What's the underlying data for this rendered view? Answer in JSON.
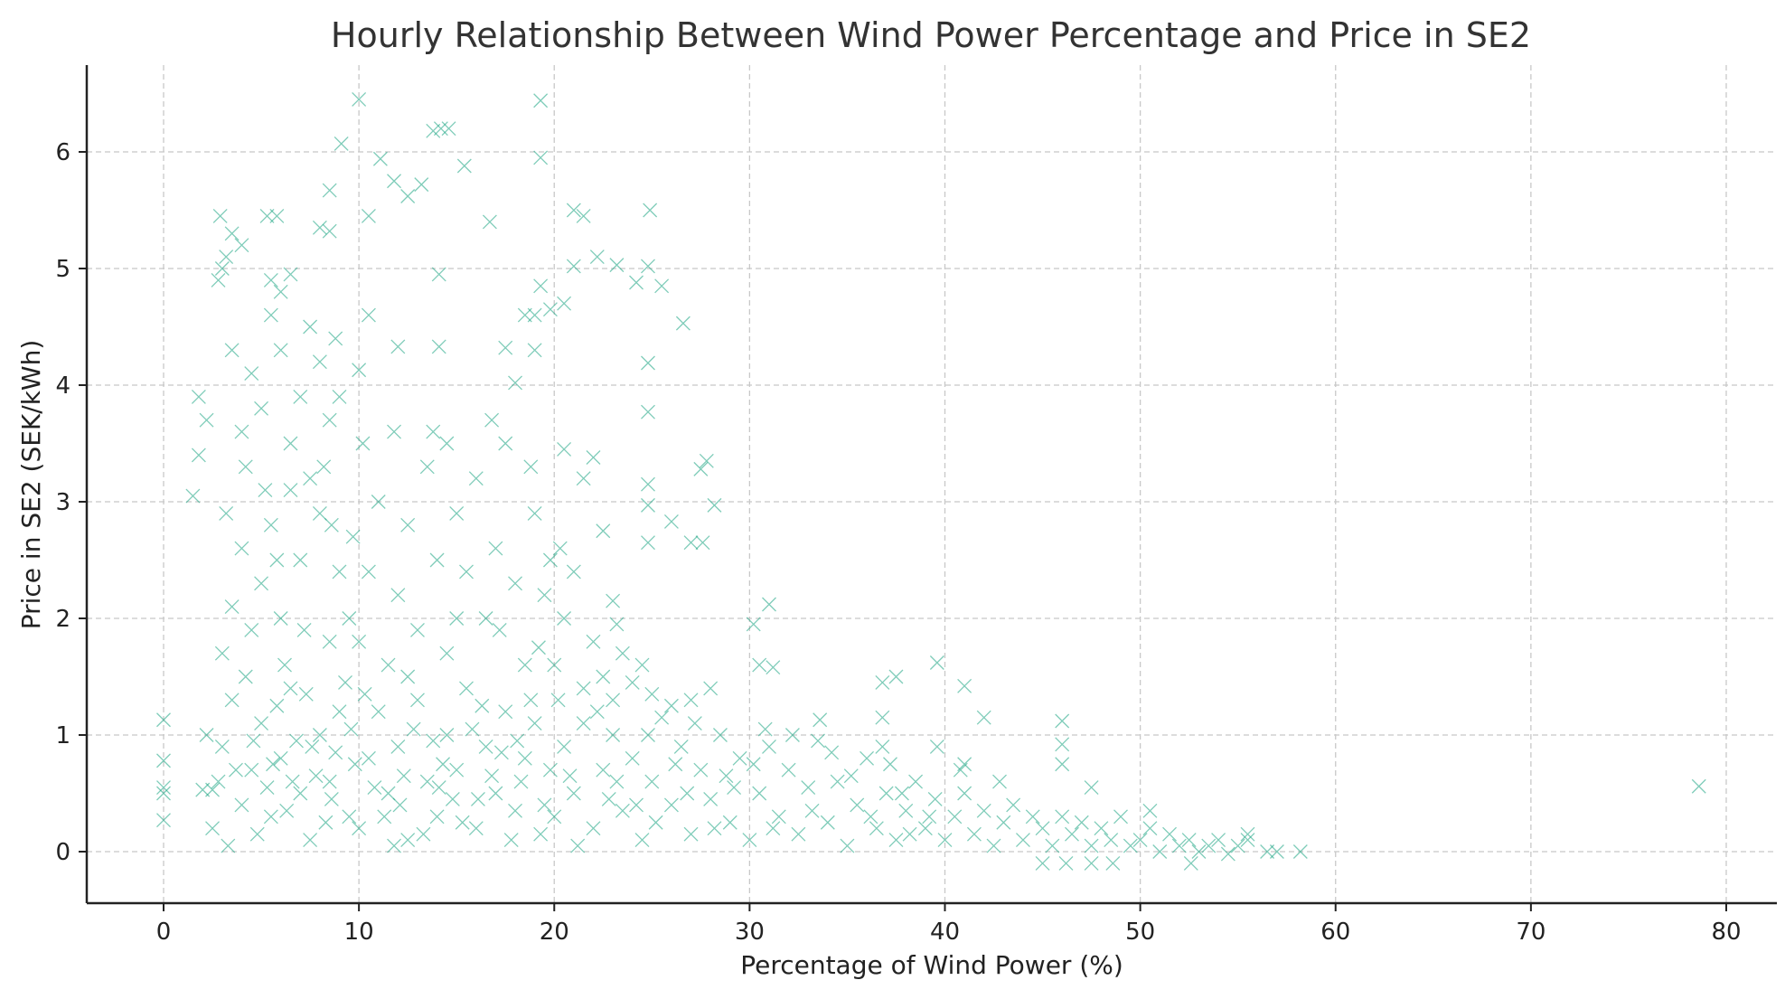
{
  "chart_data": {
    "type": "scatter",
    "title": "Hourly Relationship Between Wind Power Percentage and Price in SE2",
    "xlabel": "Percentage of Wind Power (%)",
    "ylabel": "Price in SE2 (SEK/kWh)",
    "xlim": [
      -4,
      83
    ],
    "ylim": [
      -0.45,
      6.8
    ],
    "xticks": [
      0,
      10,
      20,
      30,
      40,
      50,
      60,
      70,
      80
    ],
    "yticks": [
      0,
      1,
      2,
      3,
      4,
      5,
      6
    ],
    "grid": true,
    "marker": "x",
    "color": "#16a37f",
    "points": [
      [
        0,
        1.13
      ],
      [
        0,
        0.78
      ],
      [
        0,
        0.5
      ],
      [
        0,
        0.55
      ],
      [
        0,
        0.27
      ],
      [
        2,
        0.53
      ],
      [
        2.5,
        0.53
      ],
      [
        78.6,
        0.56
      ],
      [
        57,
        0
      ],
      [
        58.2,
        0
      ],
      [
        55.5,
        0.15
      ],
      [
        50.5,
        0.35
      ],
      [
        46,
        1.12
      ],
      [
        46,
        0.92
      ],
      [
        46,
        0.75
      ],
      [
        47.5,
        0.55
      ],
      [
        42,
        1.15
      ],
      [
        41,
        1.42
      ],
      [
        41,
        0.75
      ],
      [
        39.6,
        1.62
      ],
      [
        39.6,
        0.9
      ],
      [
        37.5,
        1.5
      ],
      [
        36.8,
        1.45
      ],
      [
        36.8,
        1.15
      ],
      [
        33.6,
        1.13
      ],
      [
        31,
        2.12
      ],
      [
        30.2,
        1.95
      ],
      [
        30.5,
        1.6
      ],
      [
        31.2,
        1.58
      ],
      [
        28,
        1.4
      ],
      [
        27.5,
        3.28
      ],
      [
        27.8,
        3.35
      ],
      [
        28.2,
        2.97
      ],
      [
        26.6,
        4.53
      ],
      [
        26,
        2.83
      ],
      [
        27,
        2.65
      ],
      [
        27.6,
        2.65
      ],
      [
        25.5,
        4.85
      ],
      [
        24.9,
        5.5
      ],
      [
        24.8,
        5.02
      ],
      [
        24.8,
        4.19
      ],
      [
        24.8,
        3.77
      ],
      [
        24.8,
        3.15
      ],
      [
        24.8,
        2.97
      ],
      [
        24.8,
        2.65
      ],
      [
        24.2,
        4.88
      ],
      [
        23.2,
        5.03
      ],
      [
        22.2,
        5.1
      ],
      [
        21.5,
        5.45
      ],
      [
        21,
        5.5
      ],
      [
        21,
        5.02
      ],
      [
        20.5,
        4.7
      ],
      [
        19.8,
        4.65
      ],
      [
        19.3,
        6.44
      ],
      [
        19.3,
        5.95
      ],
      [
        19.3,
        4.85
      ],
      [
        19,
        4.6
      ],
      [
        19,
        4.3
      ],
      [
        18.5,
        4.6
      ],
      [
        18,
        4.02
      ],
      [
        17.5,
        4.32
      ],
      [
        16.7,
        5.4
      ],
      [
        15.4,
        5.88
      ],
      [
        14.6,
        6.2
      ],
      [
        14.2,
        6.2
      ],
      [
        13.8,
        6.18
      ],
      [
        14.1,
        4.95
      ],
      [
        14.1,
        4.33
      ],
      [
        13.2,
        5.72
      ],
      [
        12.5,
        5.62
      ],
      [
        11.8,
        5.75
      ],
      [
        11.1,
        5.94
      ],
      [
        10.5,
        5.45
      ],
      [
        10,
        6.45
      ],
      [
        10.5,
        4.6
      ],
      [
        10,
        4.13
      ],
      [
        9.1,
        6.07
      ],
      [
        8.5,
        5.67
      ],
      [
        8.5,
        5.32
      ],
      [
        8,
        5.35
      ],
      [
        8.8,
        4.4
      ],
      [
        12,
        4.33
      ],
      [
        22.5,
        2.75
      ],
      [
        23,
        2.15
      ],
      [
        23.2,
        1.95
      ],
      [
        22,
        3.38
      ],
      [
        21.5,
        3.2
      ],
      [
        20.5,
        3.45
      ],
      [
        2.5,
        0.2
      ],
      [
        3,
        0.9
      ],
      [
        3.5,
        1.3
      ],
      [
        4,
        0.4
      ],
      [
        4.5,
        0.7
      ],
      [
        5,
        1.1
      ],
      [
        5.5,
        0.3
      ],
      [
        6,
        0.8
      ],
      [
        6.5,
        1.4
      ],
      [
        7,
        0.5
      ],
      [
        7.5,
        0.1
      ],
      [
        8,
        1.0
      ],
      [
        8.5,
        0.6
      ],
      [
        9,
        1.2
      ],
      [
        9.5,
        0.3
      ],
      [
        2.8,
        0.6
      ],
      [
        3.3,
        0.05
      ],
      [
        4.2,
        1.5
      ],
      [
        4.8,
        0.15
      ],
      [
        5.3,
        0.55
      ],
      [
        5.8,
        1.25
      ],
      [
        6.3,
        0.35
      ],
      [
        6.8,
        0.95
      ],
      [
        7.3,
        1.35
      ],
      [
        7.8,
        0.65
      ],
      [
        8.3,
        0.25
      ],
      [
        8.8,
        0.85
      ],
      [
        9.3,
        1.45
      ],
      [
        9.8,
        0.75
      ],
      [
        2.2,
        1.0
      ],
      [
        3.7,
        0.7
      ],
      [
        4.6,
        0.95
      ],
      [
        5.6,
        0.75
      ],
      [
        6.6,
        0.6
      ],
      [
        7.6,
        0.9
      ],
      [
        8.6,
        0.45
      ],
      [
        9.6,
        1.05
      ],
      [
        3,
        1.7
      ],
      [
        3.5,
        2.1
      ],
      [
        4,
        2.6
      ],
      [
        4.5,
        1.9
      ],
      [
        5,
        2.3
      ],
      [
        5.5,
        2.8
      ],
      [
        6,
        2.0
      ],
      [
        6.5,
        3.1
      ],
      [
        7,
        2.5
      ],
      [
        7.5,
        3.2
      ],
      [
        8,
        2.9
      ],
      [
        8.5,
        1.8
      ],
      [
        9,
        2.4
      ],
      [
        9.5,
        2.0
      ],
      [
        5.2,
        3.1
      ],
      [
        6.2,
        1.6
      ],
      [
        7.2,
        1.9
      ],
      [
        8.2,
        3.3
      ],
      [
        8.6,
        2.8
      ],
      [
        9.7,
        2.7
      ],
      [
        4.2,
        3.3
      ],
      [
        3.2,
        2.9
      ],
      [
        5.8,
        2.5
      ],
      [
        4,
        3.6
      ],
      [
        4.5,
        4.1
      ],
      [
        5,
        3.8
      ],
      [
        5.5,
        4.6
      ],
      [
        6,
        4.3
      ],
      [
        6,
        4.8
      ],
      [
        6.5,
        3.5
      ],
      [
        7.5,
        4.5
      ],
      [
        8,
        4.2
      ],
      [
        8.5,
        3.7
      ],
      [
        9,
        3.9
      ],
      [
        7,
        3.9
      ],
      [
        3.5,
        4.3
      ],
      [
        1.8,
        3.4
      ],
      [
        1.5,
        3.05
      ],
      [
        1.8,
        3.9
      ],
      [
        2.2,
        3.7
      ],
      [
        2.8,
        4.9
      ],
      [
        3,
        5.0
      ],
      [
        3.2,
        5.1
      ],
      [
        2.9,
        5.45
      ],
      [
        3.5,
        5.3
      ],
      [
        4,
        5.2
      ],
      [
        5.3,
        5.45
      ],
      [
        5.8,
        5.45
      ],
      [
        5.5,
        4.9
      ],
      [
        6.5,
        4.95
      ],
      [
        10,
        0.2
      ],
      [
        10.5,
        0.8
      ],
      [
        11,
        1.2
      ],
      [
        11.5,
        0.5
      ],
      [
        12,
        0.9
      ],
      [
        12.5,
        0.1
      ],
      [
        13,
        1.3
      ],
      [
        13.5,
        0.6
      ],
      [
        14,
        0.3
      ],
      [
        14.5,
        1.0
      ],
      [
        15,
        0.7
      ],
      [
        15.5,
        1.4
      ],
      [
        16,
        0.2
      ],
      [
        16.5,
        0.9
      ],
      [
        17,
        0.5
      ],
      [
        17.5,
        1.2
      ],
      [
        18,
        0.35
      ],
      [
        18.5,
        0.8
      ],
      [
        19,
        1.1
      ],
      [
        19.5,
        0.4
      ],
      [
        10.3,
        1.35
      ],
      [
        11.3,
        0.3
      ],
      [
        12.3,
        0.65
      ],
      [
        13.3,
        0.15
      ],
      [
        14.3,
        0.75
      ],
      [
        15.3,
        0.25
      ],
      [
        16.3,
        1.25
      ],
      [
        17.3,
        0.85
      ],
      [
        18.3,
        0.6
      ],
      [
        19.3,
        0.15
      ],
      [
        10.8,
        0.55
      ],
      [
        11.8,
        0.05
      ],
      [
        12.8,
        1.05
      ],
      [
        13.8,
        0.95
      ],
      [
        14.8,
        0.45
      ],
      [
        15.8,
        1.05
      ],
      [
        16.8,
        0.65
      ],
      [
        17.8,
        0.1
      ],
      [
        18.8,
        1.3
      ],
      [
        19.8,
        0.7
      ],
      [
        12.1,
        0.4
      ],
      [
        14.1,
        0.55
      ],
      [
        16.1,
        0.45
      ],
      [
        18.1,
        0.95
      ],
      [
        10,
        1.8
      ],
      [
        10.5,
        2.4
      ],
      [
        11,
        3.0
      ],
      [
        11.5,
        1.6
      ],
      [
        12,
        2.2
      ],
      [
        12.5,
        2.8
      ],
      [
        13,
        1.9
      ],
      [
        13.5,
        3.3
      ],
      [
        14,
        2.5
      ],
      [
        14.5,
        1.7
      ],
      [
        15,
        2.9
      ],
      [
        15.5,
        2.4
      ],
      [
        16,
        3.2
      ],
      [
        16.5,
        2.0
      ],
      [
        17,
        2.6
      ],
      [
        17.5,
        3.5
      ],
      [
        18,
        2.3
      ],
      [
        18.5,
        1.6
      ],
      [
        19,
        2.9
      ],
      [
        19.5,
        2.2
      ],
      [
        11.8,
        3.6
      ],
      [
        13.8,
        3.6
      ],
      [
        16.8,
        3.7
      ],
      [
        18.8,
        3.3
      ],
      [
        12.5,
        1.5
      ],
      [
        15,
        2.0
      ],
      [
        17.2,
        1.9
      ],
      [
        19.2,
        1.75
      ],
      [
        10.2,
        3.5
      ],
      [
        14.5,
        3.5
      ],
      [
        20,
        0.3
      ],
      [
        20.5,
        0.9
      ],
      [
        21,
        0.5
      ],
      [
        21.5,
        1.1
      ],
      [
        22,
        0.2
      ],
      [
        22.5,
        0.7
      ],
      [
        23,
        1.0
      ],
      [
        23.5,
        0.35
      ],
      [
        24,
        0.8
      ],
      [
        24.5,
        0.1
      ],
      [
        25,
        0.6
      ],
      [
        25.5,
        1.15
      ],
      [
        26,
        0.4
      ],
      [
        26.5,
        0.9
      ],
      [
        27,
        0.15
      ],
      [
        27.5,
        0.7
      ],
      [
        28,
        0.45
      ],
      [
        28.5,
        1.0
      ],
      [
        29,
        0.25
      ],
      [
        29.5,
        0.8
      ],
      [
        20.2,
        1.3
      ],
      [
        21.2,
        0.05
      ],
      [
        22.2,
        1.2
      ],
      [
        23.2,
        0.6
      ],
      [
        24.2,
        0.4
      ],
      [
        25.2,
        0.25
      ],
      [
        26.2,
        0.75
      ],
      [
        27.2,
        1.1
      ],
      [
        28.2,
        0.2
      ],
      [
        29.2,
        0.55
      ],
      [
        20.8,
        0.65
      ],
      [
        22.8,
        0.45
      ],
      [
        24.8,
        1.0
      ],
      [
        26.8,
        0.5
      ],
      [
        28.8,
        0.65
      ],
      [
        20,
        1.6
      ],
      [
        20.5,
        2.0
      ],
      [
        21,
        2.4
      ],
      [
        21.5,
        1.4
      ],
      [
        22,
        1.8
      ],
      [
        22.5,
        1.5
      ],
      [
        23,
        1.3
      ],
      [
        23.5,
        1.7
      ],
      [
        24,
        1.45
      ],
      [
        24.5,
        1.6
      ],
      [
        25,
        1.35
      ],
      [
        26,
        1.25
      ],
      [
        27,
        1.3
      ],
      [
        20.3,
        2.6
      ],
      [
        19.8,
        2.5
      ],
      [
        30,
        0.1
      ],
      [
        30.5,
        0.5
      ],
      [
        31,
        0.9
      ],
      [
        31.5,
        0.3
      ],
      [
        32,
        0.7
      ],
      [
        32.5,
        0.15
      ],
      [
        33,
        0.55
      ],
      [
        33.5,
        0.95
      ],
      [
        34,
        0.25
      ],
      [
        34.5,
        0.6
      ],
      [
        35,
        0.05
      ],
      [
        35.5,
        0.4
      ],
      [
        36,
        0.8
      ],
      [
        36.5,
        0.2
      ],
      [
        37,
        0.5
      ],
      [
        37.5,
        0.1
      ],
      [
        38,
        0.35
      ],
      [
        38.5,
        0.6
      ],
      [
        39,
        0.2
      ],
      [
        39.5,
        0.45
      ],
      [
        30.2,
        0.75
      ],
      [
        31.2,
        0.2
      ],
      [
        32.2,
        1.0
      ],
      [
        33.2,
        0.35
      ],
      [
        34.2,
        0.85
      ],
      [
        35.2,
        0.65
      ],
      [
        36.2,
        0.3
      ],
      [
        37.2,
        0.75
      ],
      [
        38.2,
        0.15
      ],
      [
        39.2,
        0.3
      ],
      [
        30.8,
        1.05
      ],
      [
        36.8,
        0.9
      ],
      [
        37.8,
        0.5
      ],
      [
        40,
        0.1
      ],
      [
        40.5,
        0.3
      ],
      [
        41,
        0.5
      ],
      [
        41.5,
        0.15
      ],
      [
        42,
        0.35
      ],
      [
        42.5,
        0.05
      ],
      [
        43,
        0.25
      ],
      [
        43.5,
        0.4
      ],
      [
        44,
        0.1
      ],
      [
        44.5,
        0.3
      ],
      [
        45,
        0.2
      ],
      [
        45.5,
        0.05
      ],
      [
        46,
        0.3
      ],
      [
        46.5,
        0.15
      ],
      [
        47,
        0.25
      ],
      [
        47.5,
        0.05
      ],
      [
        48,
        0.2
      ],
      [
        48.5,
        0.1
      ],
      [
        49,
        0.3
      ],
      [
        49.5,
        0.05
      ],
      [
        40.8,
        0.7
      ],
      [
        42.8,
        0.6
      ],
      [
        45,
        -0.1
      ],
      [
        46.2,
        -0.1
      ],
      [
        47.5,
        -0.1
      ],
      [
        48.6,
        -0.1
      ],
      [
        50,
        0.1
      ],
      [
        50.5,
        0.2
      ],
      [
        51,
        0.0
      ],
      [
        51.5,
        0.15
      ],
      [
        52,
        0.05
      ],
      [
        52.5,
        0.1
      ],
      [
        53,
        0.0
      ],
      [
        53.5,
        0.05
      ],
      [
        54,
        0.1
      ],
      [
        54.5,
        -0.02
      ],
      [
        55,
        0.05
      ],
      [
        52.6,
        -0.1
      ],
      [
        55.5,
        0.1
      ],
      [
        56.5,
        0.0
      ]
    ]
  }
}
